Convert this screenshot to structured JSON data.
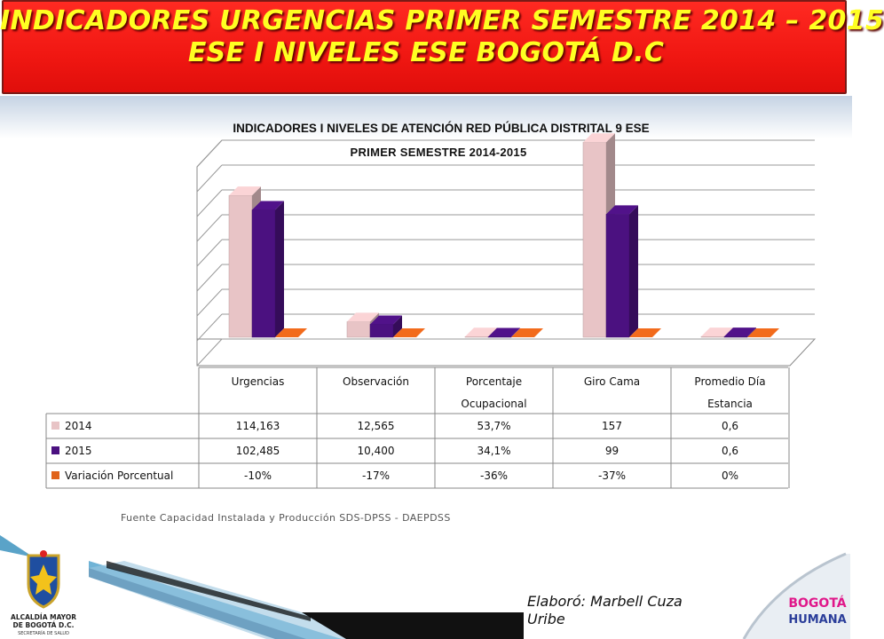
{
  "header": {
    "title_line1": "INDICADORES URGENCIAS PRIMER SEMESTRE 2014 – 2015",
    "title_line2": "ESE I NIVELES ESE BOGOTÁ D.C"
  },
  "chart_data": {
    "type": "bar",
    "title": "INDICADORES I NIVELES DE ATENCIÓN RED PÚBLICA DISTRITAL 9 ESE",
    "subtitle": "PRIMER SEMESTRE 2014-2015",
    "categories": [
      [
        "Urgencias"
      ],
      [
        "Observación"
      ],
      [
        "Porcentaje",
        "Ocupacional"
      ],
      [
        "Giro Cama"
      ],
      [
        "Promedio Día",
        "Estancia"
      ]
    ],
    "series": [
      {
        "name": "2014",
        "color": "#e8c4c6",
        "values": [
          "114,163",
          "12,565",
          "53,7%",
          "157",
          "0,6"
        ],
        "numeric": [
          114.163,
          12.565,
          0.537,
          157,
          0.6
        ]
      },
      {
        "name": "2015",
        "color": "#4b1180",
        "values": [
          "102,485",
          "10,400",
          "34,1%",
          "99",
          "0,6"
        ],
        "numeric": [
          102.485,
          10.4,
          0.341,
          99,
          0.6
        ]
      },
      {
        "name": "Variación Porcentual",
        "color": "#e0631a",
        "values": [
          "-10%",
          "-17%",
          "-36%",
          "-37%",
          "0%"
        ],
        "numeric": [
          -10,
          -17,
          -36,
          -37,
          0
        ]
      }
    ],
    "ylim": [
      0,
      160
    ],
    "gridlines": 8,
    "grid": true,
    "legend": "data table, left",
    "axis_labels_shown": false
  },
  "footer": {
    "source": "Fuente Capacidad Instalada y Producción SDS-DPSS - DAEPDSS",
    "author": "Elaboró: Marbell Cuza Uribe",
    "logo_left_lines": [
      "ALCALDÍA MAYOR",
      "DE BOGOTÁ D.C.",
      "SECRETARÍA DE SALUD"
    ],
    "logo_right_lines": [
      "BOGOTÁ",
      "HUMANA"
    ]
  }
}
